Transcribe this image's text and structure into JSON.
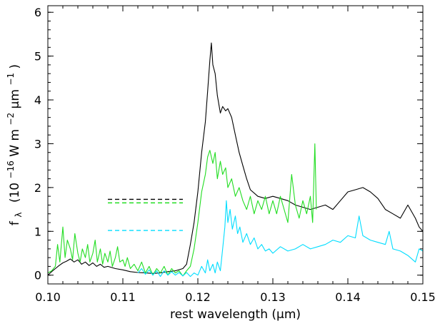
{
  "chart_data": {
    "type": "line",
    "xlabel": "rest wavelength (μm)",
    "ylabel": {
      "prefix": "f",
      "prefix_sub": "λ",
      "units": [
        "(10",
        "−16",
        "W m",
        "−2",
        "μm",
        "−1",
        ")"
      ]
    },
    "xlim": [
      0.1,
      0.15
    ],
    "ylim": [
      -0.2,
      6.15
    ],
    "xticks": [
      0.1,
      0.11,
      0.12,
      0.13,
      0.14,
      0.15
    ],
    "xtick_labels": [
      "0.10",
      "0.11",
      "0.12",
      "0.13",
      "0.14",
      "0.15"
    ],
    "yticks": [
      0,
      1,
      2,
      3,
      4,
      5,
      6
    ],
    "ytick_labels": [
      "0",
      "1",
      "2",
      "3",
      "4",
      "5",
      "6"
    ],
    "grid": false,
    "legend": "none",
    "series": [
      {
        "color": "#000000",
        "points": [
          [
            0.1,
            0.0
          ],
          [
            0.1005,
            0.08
          ],
          [
            0.101,
            0.15
          ],
          [
            0.1015,
            0.22
          ],
          [
            0.102,
            0.28
          ],
          [
            0.1025,
            0.32
          ],
          [
            0.103,
            0.37
          ],
          [
            0.1035,
            0.3
          ],
          [
            0.104,
            0.35
          ],
          [
            0.1045,
            0.25
          ],
          [
            0.105,
            0.3
          ],
          [
            0.1055,
            0.22
          ],
          [
            0.106,
            0.28
          ],
          [
            0.1065,
            0.2
          ],
          [
            0.107,
            0.25
          ],
          [
            0.1075,
            0.18
          ],
          [
            0.108,
            0.2
          ],
          [
            0.109,
            0.15
          ],
          [
            0.11,
            0.12
          ],
          [
            0.111,
            0.08
          ],
          [
            0.112,
            0.06
          ],
          [
            0.113,
            0.05
          ],
          [
            0.114,
            0.04
          ],
          [
            0.115,
            0.05
          ],
          [
            0.116,
            0.08
          ],
          [
            0.117,
            0.1
          ],
          [
            0.118,
            0.15
          ],
          [
            0.1185,
            0.25
          ],
          [
            0.119,
            0.7
          ],
          [
            0.1195,
            1.2
          ],
          [
            0.12,
            1.9
          ],
          [
            0.1205,
            2.8
          ],
          [
            0.121,
            3.5
          ],
          [
            0.1213,
            4.2
          ],
          [
            0.1216,
            4.9
          ],
          [
            0.1218,
            5.3
          ],
          [
            0.122,
            4.8
          ],
          [
            0.1223,
            4.6
          ],
          [
            0.1226,
            4.1
          ],
          [
            0.123,
            3.7
          ],
          [
            0.1233,
            3.85
          ],
          [
            0.1237,
            3.75
          ],
          [
            0.124,
            3.8
          ],
          [
            0.1245,
            3.6
          ],
          [
            0.125,
            3.2
          ],
          [
            0.1255,
            2.8
          ],
          [
            0.126,
            2.5
          ],
          [
            0.1265,
            2.2
          ],
          [
            0.127,
            1.95
          ],
          [
            0.128,
            1.8
          ],
          [
            0.129,
            1.75
          ],
          [
            0.13,
            1.8
          ],
          [
            0.131,
            1.75
          ],
          [
            0.132,
            1.7
          ],
          [
            0.133,
            1.6
          ],
          [
            0.134,
            1.55
          ],
          [
            0.135,
            1.5
          ],
          [
            0.136,
            1.55
          ],
          [
            0.137,
            1.6
          ],
          [
            0.138,
            1.5
          ],
          [
            0.139,
            1.7
          ],
          [
            0.14,
            1.9
          ],
          [
            0.141,
            1.95
          ],
          [
            0.142,
            2.0
          ],
          [
            0.143,
            1.9
          ],
          [
            0.144,
            1.75
          ],
          [
            0.145,
            1.5
          ],
          [
            0.146,
            1.4
          ],
          [
            0.147,
            1.3
          ],
          [
            0.148,
            1.6
          ],
          [
            0.149,
            1.3
          ],
          [
            0.1495,
            1.1
          ],
          [
            0.15,
            1.0
          ]
        ]
      },
      {
        "color": "#22dd22",
        "points": [
          [
            0.1,
            0.05
          ],
          [
            0.1005,
            0.1
          ],
          [
            0.101,
            0.2
          ],
          [
            0.1013,
            0.7
          ],
          [
            0.1016,
            0.3
          ],
          [
            0.102,
            1.1
          ],
          [
            0.1023,
            0.4
          ],
          [
            0.1026,
            0.8
          ],
          [
            0.103,
            0.6
          ],
          [
            0.1033,
            0.35
          ],
          [
            0.1036,
            0.95
          ],
          [
            0.104,
            0.5
          ],
          [
            0.1043,
            0.3
          ],
          [
            0.1046,
            0.6
          ],
          [
            0.105,
            0.4
          ],
          [
            0.1053,
            0.7
          ],
          [
            0.1056,
            0.3
          ],
          [
            0.106,
            0.5
          ],
          [
            0.1063,
            0.8
          ],
          [
            0.1066,
            0.3
          ],
          [
            0.107,
            0.6
          ],
          [
            0.1073,
            0.25
          ],
          [
            0.1076,
            0.5
          ],
          [
            0.108,
            0.3
          ],
          [
            0.1083,
            0.55
          ],
          [
            0.1086,
            0.2
          ],
          [
            0.109,
            0.4
          ],
          [
            0.1093,
            0.65
          ],
          [
            0.1096,
            0.3
          ],
          [
            0.11,
            0.35
          ],
          [
            0.1103,
            0.2
          ],
          [
            0.1106,
            0.4
          ],
          [
            0.111,
            0.15
          ],
          [
            0.1115,
            0.25
          ],
          [
            0.112,
            0.1
          ],
          [
            0.1125,
            0.3
          ],
          [
            0.113,
            0.05
          ],
          [
            0.1135,
            0.2
          ],
          [
            0.114,
            0.0
          ],
          [
            0.1145,
            0.15
          ],
          [
            0.115,
            0.05
          ],
          [
            0.1155,
            0.2
          ],
          [
            0.116,
            0.0
          ],
          [
            0.1165,
            0.15
          ],
          [
            0.117,
            0.05
          ],
          [
            0.1175,
            0.1
          ],
          [
            0.118,
            -0.02
          ],
          [
            0.1185,
            0.1
          ],
          [
            0.119,
            0.2
          ],
          [
            0.1195,
            0.6
          ],
          [
            0.12,
            1.2
          ],
          [
            0.1205,
            1.9
          ],
          [
            0.121,
            2.3
          ],
          [
            0.1213,
            2.7
          ],
          [
            0.1216,
            2.85
          ],
          [
            0.122,
            2.55
          ],
          [
            0.1223,
            2.8
          ],
          [
            0.1226,
            2.2
          ],
          [
            0.123,
            2.6
          ],
          [
            0.1233,
            2.3
          ],
          [
            0.1237,
            2.45
          ],
          [
            0.124,
            2.0
          ],
          [
            0.1245,
            2.2
          ],
          [
            0.125,
            1.8
          ],
          [
            0.1255,
            2.0
          ],
          [
            0.126,
            1.7
          ],
          [
            0.1265,
            1.5
          ],
          [
            0.127,
            1.8
          ],
          [
            0.1275,
            1.4
          ],
          [
            0.128,
            1.7
          ],
          [
            0.1285,
            1.5
          ],
          [
            0.129,
            1.8
          ],
          [
            0.1295,
            1.4
          ],
          [
            0.13,
            1.7
          ],
          [
            0.1305,
            1.4
          ],
          [
            0.131,
            1.8
          ],
          [
            0.1315,
            1.5
          ],
          [
            0.132,
            1.2
          ],
          [
            0.1325,
            2.3
          ],
          [
            0.133,
            1.6
          ],
          [
            0.1335,
            1.3
          ],
          [
            0.134,
            1.7
          ],
          [
            0.1345,
            1.4
          ],
          [
            0.135,
            1.8
          ],
          [
            0.1353,
            1.2
          ],
          [
            0.1356,
            3.0
          ],
          [
            0.1358,
            1.5
          ]
        ]
      },
      {
        "color": "#00ddff",
        "points": [
          [
            0.112,
            0.05
          ],
          [
            0.1125,
            0.15
          ],
          [
            0.113,
            0.02
          ],
          [
            0.1135,
            0.12
          ],
          [
            0.114,
            0.0
          ],
          [
            0.1145,
            0.1
          ],
          [
            0.115,
            -0.03
          ],
          [
            0.1155,
            0.1
          ],
          [
            0.116,
            0.0
          ],
          [
            0.1165,
            0.08
          ],
          [
            0.117,
            0.0
          ],
          [
            0.1175,
            0.06
          ],
          [
            0.118,
            -0.02
          ],
          [
            0.1185,
            0.06
          ],
          [
            0.119,
            -0.03
          ],
          [
            0.1195,
            0.05
          ],
          [
            0.12,
            0.0
          ],
          [
            0.1205,
            0.2
          ],
          [
            0.121,
            0.05
          ],
          [
            0.1213,
            0.35
          ],
          [
            0.1216,
            0.1
          ],
          [
            0.122,
            0.25
          ],
          [
            0.1223,
            0.05
          ],
          [
            0.1226,
            0.3
          ],
          [
            0.123,
            0.1
          ],
          [
            0.1233,
            0.6
          ],
          [
            0.1236,
            1.1
          ],
          [
            0.1238,
            1.7
          ],
          [
            0.124,
            1.2
          ],
          [
            0.1243,
            1.5
          ],
          [
            0.1246,
            1.05
          ],
          [
            0.125,
            1.35
          ],
          [
            0.1253,
            0.95
          ],
          [
            0.1256,
            1.1
          ],
          [
            0.126,
            0.75
          ],
          [
            0.1265,
            0.95
          ],
          [
            0.127,
            0.7
          ],
          [
            0.1275,
            0.85
          ],
          [
            0.128,
            0.6
          ],
          [
            0.1285,
            0.7
          ],
          [
            0.129,
            0.55
          ],
          [
            0.1295,
            0.6
          ],
          [
            0.13,
            0.5
          ],
          [
            0.131,
            0.65
          ],
          [
            0.132,
            0.55
          ],
          [
            0.133,
            0.6
          ],
          [
            0.134,
            0.7
          ],
          [
            0.135,
            0.6
          ],
          [
            0.136,
            0.65
          ],
          [
            0.137,
            0.7
          ],
          [
            0.138,
            0.8
          ],
          [
            0.139,
            0.75
          ],
          [
            0.14,
            0.9
          ],
          [
            0.141,
            0.85
          ],
          [
            0.1415,
            1.35
          ],
          [
            0.142,
            0.9
          ],
          [
            0.143,
            0.8
          ],
          [
            0.144,
            0.75
          ],
          [
            0.145,
            0.7
          ],
          [
            0.1455,
            1.0
          ],
          [
            0.146,
            0.6
          ],
          [
            0.147,
            0.55
          ],
          [
            0.148,
            0.45
          ],
          [
            0.149,
            0.3
          ],
          [
            0.1495,
            0.6
          ],
          [
            0.15,
            0.55
          ]
        ]
      }
    ],
    "reference_lines": [
      {
        "color": "#000000",
        "x": [
          0.108,
          0.118
        ],
        "y": 1.73
      },
      {
        "color": "#22dd22",
        "x": [
          0.108,
          0.118
        ],
        "y": 1.65
      },
      {
        "color": "#00ddff",
        "x": [
          0.108,
          0.118
        ],
        "y": 1.02
      }
    ]
  }
}
